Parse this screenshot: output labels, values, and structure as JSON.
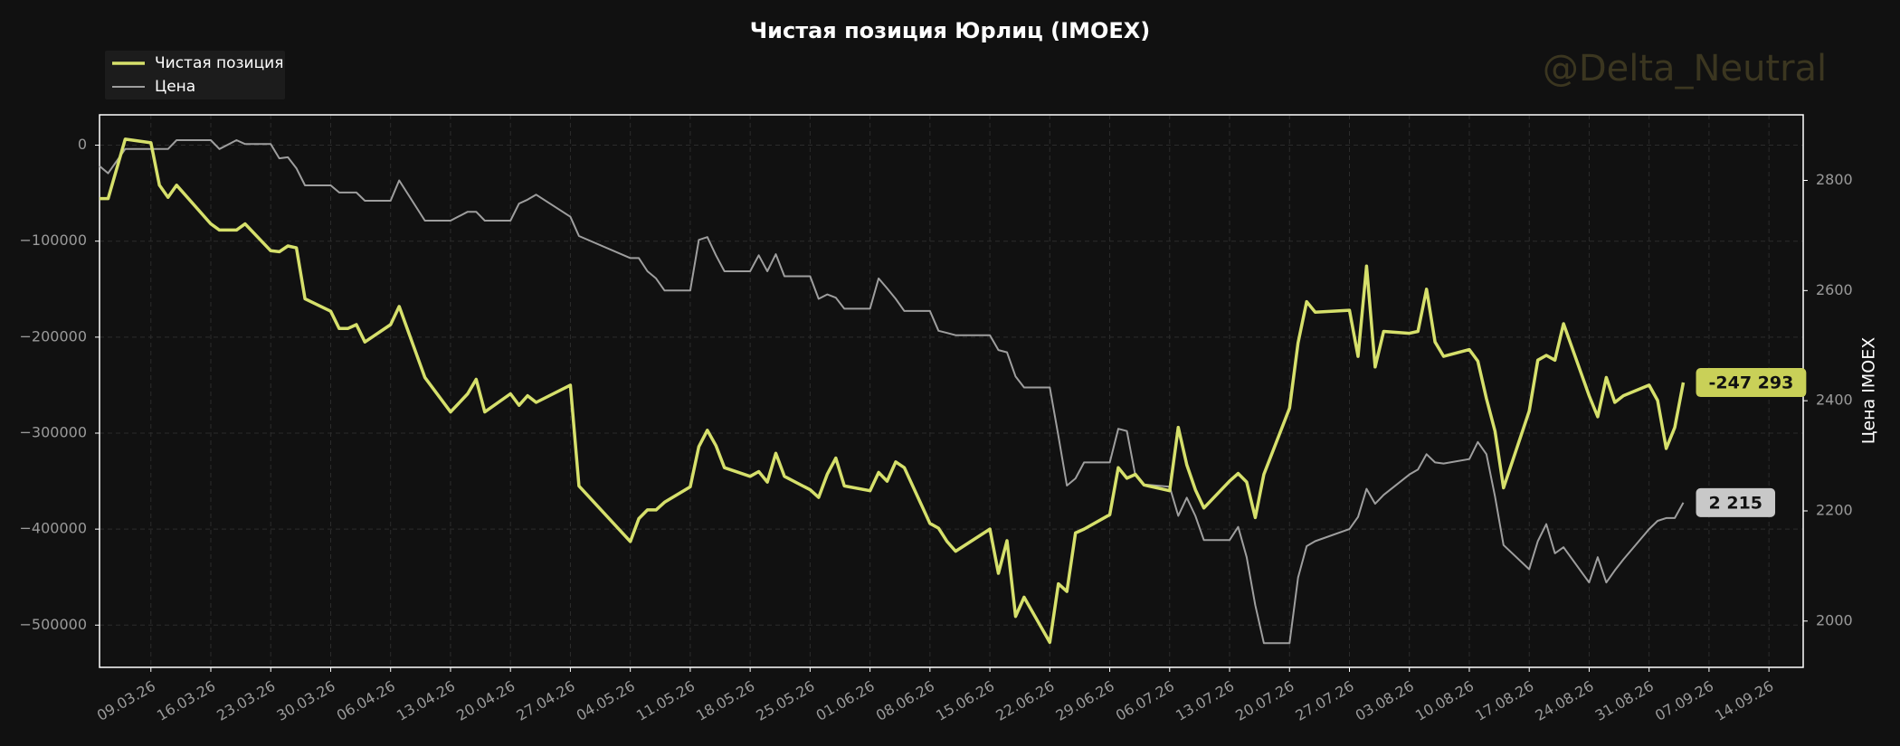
{
  "chart_data": {
    "type": "line",
    "title": "Чистая позиция Юрлиц (IMOEX)",
    "watermark": "@Delta_Neutral",
    "y2label": "Цена IMOEX",
    "legend": "upper left",
    "grid": true,
    "x": [
      "03.03.26",
      "04.03.26",
      "06.03.26",
      "09.03.26",
      "10.03.26",
      "11.03.26",
      "12.03.26",
      "16.03.26",
      "17.03.26",
      "19.03.26",
      "20.03.26",
      "23.03.26",
      "24.03.26",
      "25.03.26",
      "26.03.26",
      "27.03.26",
      "30.03.26",
      "31.03.26",
      "01.04.26",
      "02.04.26",
      "03.04.26",
      "06.04.26",
      "07.04.26",
      "10.04.26",
      "13.04.26",
      "15.04.26",
      "16.04.26",
      "17.04.26",
      "20.04.26",
      "21.04.26",
      "22.04.26",
      "23.04.26",
      "27.04.26",
      "28.04.26",
      "04.05.26",
      "05.05.26",
      "06.05.26",
      "07.05.26",
      "08.05.26",
      "11.05.26",
      "12.05.26",
      "13.05.26",
      "14.05.26",
      "15.05.26",
      "18.05.26",
      "19.05.26",
      "20.05.26",
      "21.05.26",
      "22.05.26",
      "25.05.26",
      "26.05.26",
      "27.05.26",
      "28.05.26",
      "29.05.26",
      "01.06.26",
      "02.06.26",
      "03.06.26",
      "04.06.26",
      "05.06.26",
      "08.06.26",
      "09.06.26",
      "10.06.26",
      "11.06.26",
      "15.06.26",
      "16.06.26",
      "17.06.26",
      "18.06.26",
      "19.06.26",
      "22.06.26",
      "23.06.26",
      "24.06.26",
      "25.06.26",
      "26.06.26",
      "29.06.26",
      "30.06.26",
      "01.07.26",
      "02.07.26",
      "03.07.26",
      "06.07.26",
      "07.07.26",
      "08.07.26",
      "09.07.26",
      "10.07.26",
      "13.07.26",
      "14.07.26",
      "15.07.26",
      "16.07.26",
      "17.07.26",
      "20.07.26",
      "21.07.26",
      "22.07.26",
      "23.07.26",
      "27.07.26",
      "28.07.26",
      "29.07.26",
      "30.07.26",
      "31.07.26",
      "03.08.26",
      "04.08.26",
      "05.08.26",
      "06.08.26",
      "07.08.26",
      "10.08.26",
      "11.08.26",
      "12.08.26",
      "13.08.26",
      "14.08.26",
      "17.08.26",
      "18.08.26",
      "19.08.26",
      "20.08.26",
      "21.08.26",
      "24.08.26",
      "25.08.26",
      "26.08.26",
      "27.08.26",
      "28.08.26",
      "31.08.26",
      "01.09.26",
      "02.09.26",
      "03.09.26",
      "04.09.26"
    ],
    "xlim": [
      "03.03.26",
      "18.09.26"
    ],
    "xticks": [
      "09.03.26",
      "16.03.26",
      "23.03.26",
      "30.03.26",
      "06.04.26",
      "13.04.26",
      "20.04.26",
      "27.04.26",
      "04.05.26",
      "11.05.26",
      "18.05.26",
      "25.05.26",
      "01.06.26",
      "08.06.26",
      "15.06.26",
      "22.06.26",
      "29.06.26",
      "06.07.26",
      "13.07.26",
      "20.07.26",
      "27.07.26",
      "03.08.26",
      "10.08.26",
      "17.08.26",
      "24.08.26",
      "31.08.26",
      "07.09.26",
      "14.09.26"
    ],
    "ylim": [
      -544000,
      31600
    ],
    "yticks": [
      {
        "value": -500000,
        "label": "−500000"
      },
      {
        "value": -400000,
        "label": "−400000"
      },
      {
        "value": -300000,
        "label": "−300000"
      },
      {
        "value": -200000,
        "label": "−200000"
      },
      {
        "value": -100000,
        "label": "−100000"
      },
      0
    ],
    "y2lim": [
      1916,
      2919
    ],
    "y2ticks": [
      2000,
      2200,
      2400,
      2600,
      2800
    ],
    "series": [
      {
        "name": "Чистая позиция",
        "color": "#d6e06b",
        "axis": "y",
        "values": [
          -55600,
          -55600,
          6300,
          2500,
          -41700,
          -54300,
          -41700,
          -82000,
          -88400,
          -88400,
          -82000,
          -110000,
          -111000,
          -105000,
          -107000,
          -160000,
          -173000,
          -191000,
          -191000,
          -187000,
          -205000,
          -187000,
          -168000,
          -242000,
          -278000,
          -259000,
          -244000,
          -278000,
          -259000,
          -271000,
          -261000,
          -268000,
          -250000,
          -355000,
          -413000,
          -389000,
          -380000,
          -380000,
          -372000,
          -356000,
          -314000,
          -297000,
          -313000,
          -336000,
          -345000,
          -340000,
          -351000,
          -321000,
          -345000,
          -359000,
          -367000,
          -343000,
          -326000,
          -355000,
          -360000,
          -341000,
          -350000,
          -330000,
          -336000,
          -394000,
          -399000,
          -413000,
          -423000,
          -400000,
          -446000,
          -412000,
          -491000,
          -471000,
          -518000,
          -457000,
          -465000,
          -404000,
          -400000,
          -385000,
          -336000,
          -347000,
          -343000,
          -354000,
          -360000,
          -294000,
          -333000,
          -359000,
          -378000,
          -350000,
          -342000,
          -351000,
          -388000,
          -343000,
          -274000,
          -206000,
          -163000,
          -174000,
          -172000,
          -220000,
          -126000,
          -231000,
          -194000,
          -196000,
          -194000,
          -150000,
          -205000,
          -220000,
          -213000,
          -225000,
          -264000,
          -298000,
          -357000,
          -277000,
          -224000,
          -219000,
          -224000,
          -186000,
          -261000,
          -283000,
          -242000,
          -268000,
          -261000,
          -250000,
          -266000,
          -316000,
          -294000,
          -247293
        ],
        "value_labels": [
          null,
          null,
          null,
          null,
          null,
          null,
          null,
          null,
          null,
          null,
          null,
          null,
          null,
          null,
          null,
          null,
          null,
          null,
          null,
          null,
          null,
          null,
          null,
          null,
          null,
          null,
          null,
          null,
          null,
          null,
          null,
          null,
          null,
          null,
          null,
          null,
          null,
          null,
          null,
          null,
          null,
          null,
          null,
          null,
          null,
          null,
          null,
          null,
          null,
          null,
          null,
          null,
          null,
          null,
          null,
          null,
          null,
          null,
          null,
          null,
          null,
          null,
          null,
          null,
          null,
          null,
          null,
          null,
          null,
          null,
          null,
          null,
          null,
          null,
          null,
          null,
          null,
          null,
          null,
          null,
          null,
          null,
          null,
          null,
          null,
          null,
          null,
          null,
          null,
          null,
          null,
          null,
          null,
          null,
          null,
          null,
          null,
          null,
          null,
          null,
          null,
          null,
          null,
          null,
          null,
          null,
          null,
          null,
          null,
          null,
          null,
          null,
          null,
          null,
          null,
          null,
          null,
          null,
          null,
          null,
          null,
          "-247 293"
        ]
      },
      {
        "name": "Цена",
        "color": "#9e9e9e",
        "axis": "y2",
        "values": [
          2826,
          2813,
          2857,
          2857,
          2857,
          2857,
          2873,
          2873,
          2857,
          2873,
          2866,
          2866,
          2840,
          2842,
          2822,
          2791,
          2791,
          2778,
          2778,
          2778,
          2763,
          2763,
          2800,
          2727,
          2727,
          2743,
          2743,
          2727,
          2727,
          2758,
          2765,
          2774,
          2734,
          2699,
          2659,
          2659,
          2635,
          2622,
          2600,
          2600,
          2692,
          2697,
          2664,
          2635,
          2635,
          2664,
          2635,
          2666,
          2626,
          2626,
          2585,
          2593,
          2587,
          2567,
          2567,
          2622,
          2604,
          2585,
          2563,
          2563,
          2527,
          2523,
          2519,
          2519,
          2492,
          2488,
          2444,
          2424,
          2424,
          2336,
          2246,
          2259,
          2288,
          2288,
          2349,
          2345,
          2264,
          2248,
          2244,
          2191,
          2224,
          2191,
          2147,
          2147,
          2171,
          2116,
          2029,
          1960,
          1960,
          2079,
          2136,
          2145,
          2167,
          2189,
          2240,
          2213,
          2229,
          2266,
          2275,
          2303,
          2288,
          2286,
          2294,
          2325,
          2303,
          2226,
          2138,
          2094,
          2145,
          2176,
          2123,
          2134,
          2070,
          2116,
          2070,
          2092,
          2112,
          2167,
          2182,
          2187,
          2187,
          2215
        ],
        "value_labels": [
          null,
          null,
          null,
          null,
          null,
          null,
          null,
          null,
          null,
          null,
          null,
          null,
          null,
          null,
          null,
          null,
          null,
          null,
          null,
          null,
          null,
          null,
          null,
          null,
          null,
          null,
          null,
          null,
          null,
          null,
          null,
          null,
          null,
          null,
          null,
          null,
          null,
          null,
          null,
          null,
          null,
          null,
          null,
          null,
          null,
          null,
          null,
          null,
          null,
          null,
          null,
          null,
          null,
          null,
          null,
          null,
          null,
          null,
          null,
          null,
          null,
          null,
          null,
          null,
          null,
          null,
          null,
          null,
          null,
          null,
          null,
          null,
          null,
          null,
          null,
          null,
          null,
          null,
          null,
          null,
          null,
          null,
          null,
          null,
          null,
          null,
          null,
          null,
          null,
          null,
          null,
          null,
          null,
          null,
          null,
          null,
          null,
          null,
          null,
          null,
          null,
          null,
          null,
          null,
          null,
          null,
          null,
          null,
          null,
          null,
          null,
          null,
          null,
          null,
          null,
          null,
          null,
          null,
          null,
          null,
          null,
          "2 215"
        ]
      }
    ]
  }
}
